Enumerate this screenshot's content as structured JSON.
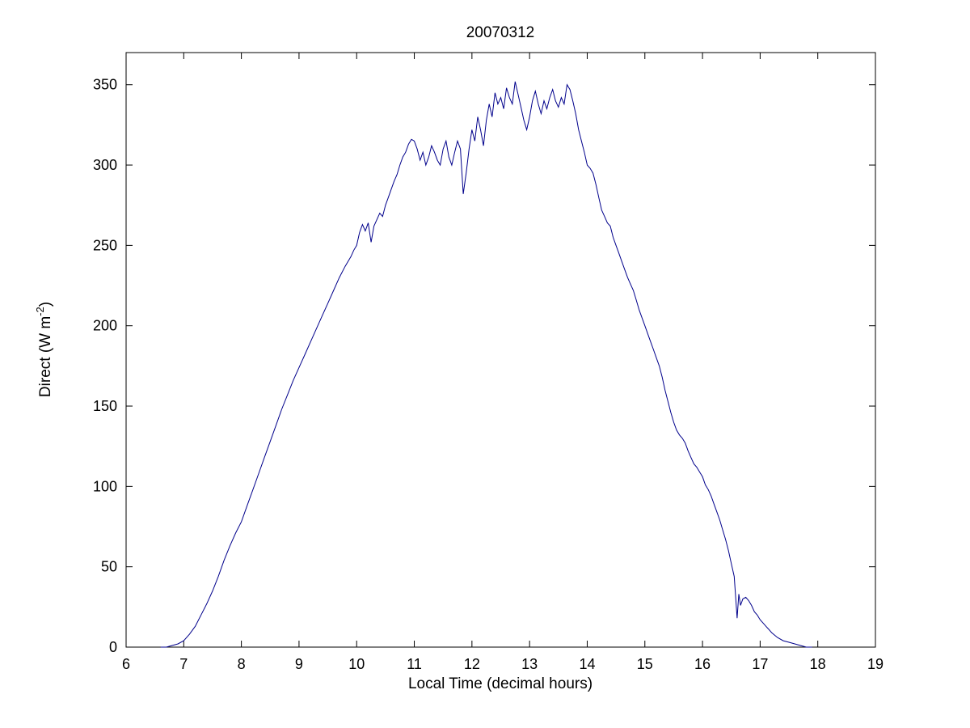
{
  "chart_data": {
    "type": "line",
    "title": "20070312",
    "xlabel": "Local Time (decimal hours)",
    "ylabel": "Direct (W m-2)",
    "ylabel_prefix": "Direct (W m",
    "ylabel_sup": "-2",
    "ylabel_suffix": ")",
    "xlim": [
      6,
      19
    ],
    "ylim": [
      0,
      370
    ],
    "x_ticks": [
      6,
      7,
      8,
      9,
      10,
      11,
      12,
      13,
      14,
      15,
      16,
      17,
      18,
      19
    ],
    "y_ticks": [
      0,
      50,
      100,
      150,
      200,
      250,
      300,
      350
    ],
    "grid": false,
    "legend": "none",
    "line_color": "#00008B",
    "axis_color": "#000000",
    "background_color": "#ffffff",
    "points": [
      [
        6.6,
        0
      ],
      [
        6.7,
        0
      ],
      [
        6.8,
        1
      ],
      [
        6.9,
        2
      ],
      [
        7.0,
        4
      ],
      [
        7.1,
        8
      ],
      [
        7.2,
        13
      ],
      [
        7.3,
        20
      ],
      [
        7.4,
        27
      ],
      [
        7.5,
        35
      ],
      [
        7.6,
        44
      ],
      [
        7.7,
        54
      ],
      [
        7.8,
        63
      ],
      [
        7.9,
        71
      ],
      [
        8.0,
        78
      ],
      [
        8.1,
        88
      ],
      [
        8.2,
        98
      ],
      [
        8.3,
        108
      ],
      [
        8.4,
        118
      ],
      [
        8.5,
        128
      ],
      [
        8.6,
        138
      ],
      [
        8.7,
        148
      ],
      [
        8.8,
        157
      ],
      [
        8.9,
        166
      ],
      [
        9.0,
        174
      ],
      [
        9.1,
        182
      ],
      [
        9.2,
        190
      ],
      [
        9.3,
        198
      ],
      [
        9.4,
        206
      ],
      [
        9.5,
        214
      ],
      [
        9.6,
        222
      ],
      [
        9.7,
        230
      ],
      [
        9.8,
        237
      ],
      [
        9.9,
        243
      ],
      [
        9.95,
        247
      ],
      [
        10.0,
        250
      ],
      [
        10.05,
        258
      ],
      [
        10.1,
        263
      ],
      [
        10.15,
        259
      ],
      [
        10.2,
        264
      ],
      [
        10.25,
        252
      ],
      [
        10.3,
        262
      ],
      [
        10.35,
        266
      ],
      [
        10.4,
        270
      ],
      [
        10.45,
        268
      ],
      [
        10.5,
        275
      ],
      [
        10.55,
        280
      ],
      [
        10.6,
        285
      ],
      [
        10.65,
        290
      ],
      [
        10.7,
        294
      ],
      [
        10.75,
        300
      ],
      [
        10.8,
        305
      ],
      [
        10.85,
        308
      ],
      [
        10.9,
        313
      ],
      [
        10.95,
        316
      ],
      [
        11.0,
        315
      ],
      [
        11.05,
        310
      ],
      [
        11.1,
        303
      ],
      [
        11.15,
        308
      ],
      [
        11.2,
        300
      ],
      [
        11.25,
        305
      ],
      [
        11.3,
        312
      ],
      [
        11.35,
        308
      ],
      [
        11.4,
        303
      ],
      [
        11.45,
        300
      ],
      [
        11.5,
        310
      ],
      [
        11.55,
        315
      ],
      [
        11.6,
        305
      ],
      [
        11.65,
        300
      ],
      [
        11.7,
        308
      ],
      [
        11.75,
        315
      ],
      [
        11.8,
        310
      ],
      [
        11.85,
        282
      ],
      [
        11.9,
        295
      ],
      [
        11.95,
        310
      ],
      [
        12.0,
        322
      ],
      [
        12.05,
        315
      ],
      [
        12.1,
        330
      ],
      [
        12.15,
        322
      ],
      [
        12.2,
        312
      ],
      [
        12.25,
        328
      ],
      [
        12.3,
        338
      ],
      [
        12.35,
        330
      ],
      [
        12.4,
        345
      ],
      [
        12.45,
        338
      ],
      [
        12.5,
        342
      ],
      [
        12.55,
        335
      ],
      [
        12.6,
        348
      ],
      [
        12.65,
        342
      ],
      [
        12.7,
        338
      ],
      [
        12.75,
        352
      ],
      [
        12.8,
        344
      ],
      [
        12.85,
        336
      ],
      [
        12.9,
        328
      ],
      [
        12.95,
        322
      ],
      [
        13.0,
        330
      ],
      [
        13.05,
        340
      ],
      [
        13.1,
        346
      ],
      [
        13.15,
        338
      ],
      [
        13.2,
        332
      ],
      [
        13.25,
        340
      ],
      [
        13.3,
        335
      ],
      [
        13.35,
        342
      ],
      [
        13.4,
        347
      ],
      [
        13.45,
        340
      ],
      [
        13.5,
        336
      ],
      [
        13.55,
        342
      ],
      [
        13.6,
        338
      ],
      [
        13.65,
        350
      ],
      [
        13.7,
        347
      ],
      [
        13.75,
        340
      ],
      [
        13.8,
        332
      ],
      [
        13.85,
        322
      ],
      [
        13.9,
        315
      ],
      [
        13.95,
        308
      ],
      [
        14.0,
        300
      ],
      [
        14.05,
        298
      ],
      [
        14.1,
        295
      ],
      [
        14.15,
        288
      ],
      [
        14.2,
        280
      ],
      [
        14.25,
        272
      ],
      [
        14.3,
        268
      ],
      [
        14.35,
        264
      ],
      [
        14.4,
        262
      ],
      [
        14.45,
        255
      ],
      [
        14.5,
        250
      ],
      [
        14.55,
        245
      ],
      [
        14.6,
        240
      ],
      [
        14.65,
        235
      ],
      [
        14.7,
        230
      ],
      [
        14.75,
        226
      ],
      [
        14.8,
        222
      ],
      [
        14.85,
        216
      ],
      [
        14.9,
        210
      ],
      [
        14.95,
        205
      ],
      [
        15.0,
        200
      ],
      [
        15.05,
        195
      ],
      [
        15.1,
        190
      ],
      [
        15.15,
        185
      ],
      [
        15.2,
        180
      ],
      [
        15.25,
        175
      ],
      [
        15.3,
        168
      ],
      [
        15.35,
        160
      ],
      [
        15.4,
        153
      ],
      [
        15.45,
        146
      ],
      [
        15.5,
        140
      ],
      [
        15.55,
        135
      ],
      [
        15.6,
        132
      ],
      [
        15.65,
        130
      ],
      [
        15.7,
        127
      ],
      [
        15.75,
        122
      ],
      [
        15.8,
        118
      ],
      [
        15.85,
        114
      ],
      [
        15.9,
        112
      ],
      [
        15.95,
        109
      ],
      [
        16.0,
        106
      ],
      [
        16.05,
        101
      ],
      [
        16.1,
        98
      ],
      [
        16.15,
        94
      ],
      [
        16.2,
        89
      ],
      [
        16.25,
        84
      ],
      [
        16.3,
        79
      ],
      [
        16.35,
        73
      ],
      [
        16.4,
        67
      ],
      [
        16.45,
        60
      ],
      [
        16.5,
        52
      ],
      [
        16.55,
        44
      ],
      [
        16.6,
        18
      ],
      [
        16.63,
        33
      ],
      [
        16.66,
        26
      ],
      [
        16.7,
        30
      ],
      [
        16.75,
        31
      ],
      [
        16.8,
        29
      ],
      [
        16.85,
        26
      ],
      [
        16.9,
        22
      ],
      [
        16.95,
        20
      ],
      [
        17.0,
        17
      ],
      [
        17.05,
        15
      ],
      [
        17.1,
        13
      ],
      [
        17.15,
        11
      ],
      [
        17.2,
        9
      ],
      [
        17.3,
        6
      ],
      [
        17.4,
        4
      ],
      [
        17.5,
        3
      ],
      [
        17.6,
        2
      ],
      [
        17.7,
        1
      ],
      [
        17.8,
        0
      ],
      [
        17.9,
        0
      ]
    ]
  }
}
